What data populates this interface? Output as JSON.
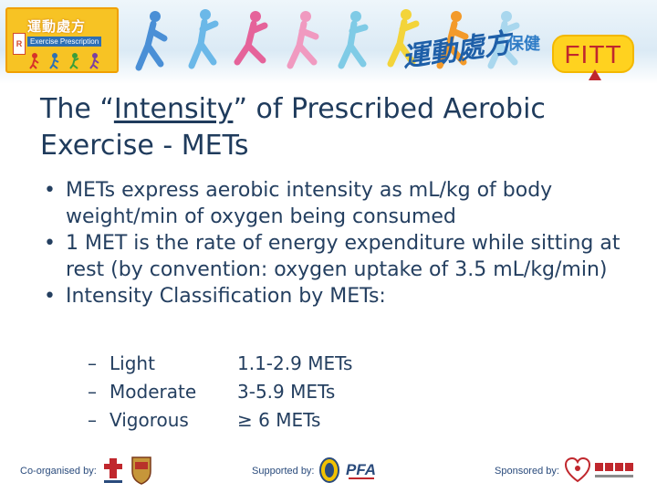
{
  "banner": {
    "logo_cn": "運動處方",
    "logo_en": "Exercise Prescription",
    "logo_rx": "R",
    "brand_cn": "運動處方",
    "brand_cn2": "保健",
    "fitt": "FITT",
    "colors": {
      "fitt_bg": "#ffd21f",
      "fitt_text": "#c0272d",
      "brand_blue": "#1e5fa8"
    }
  },
  "title": {
    "pre": "The “",
    "underlined": "Intensity",
    "post": "” of Prescribed Aerobic Exercise - METs"
  },
  "bullets": [
    "METs express aerobic intensity as mL/kg of body weight/min of oxygen being consumed",
    "1 MET is the rate of energy expenditure while sitting at rest (by convention: oxygen uptake of 3.5 mL/kg/min)",
    "Intensity Classification by METs:"
  ],
  "classification": [
    {
      "level": "Light",
      "value": "1.1-2.9 METs"
    },
    {
      "level": "Moderate",
      "value": "3-5.9 METs"
    },
    {
      "level": "Vigorous",
      "value": "≥ 6 METs"
    }
  ],
  "footer": {
    "co_organised": "Co-organised by:",
    "supported": "Supported by:",
    "sponsored": "Sponsored by:"
  }
}
